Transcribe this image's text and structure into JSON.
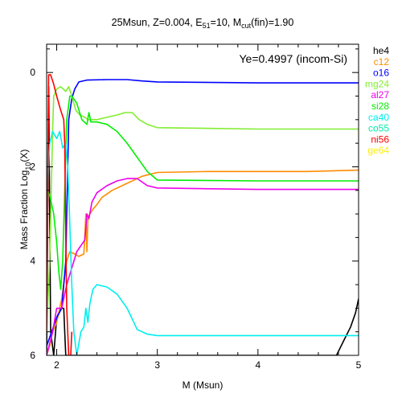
{
  "chart_data": {
    "type": "line",
    "title": {
      "model": "25Msun, Z=0.004, E",
      "e_sub": "51",
      "e_val": "=10, M",
      "m_sub": "cut",
      "m_val": "(fin)=1.90"
    },
    "xlabel": "M (Msun)",
    "ylabel": {
      "main": "Mass Fraction Log",
      "sub": "10",
      "tail": "(X)"
    },
    "annotation": "Ye=0.4997 (incom-Si)",
    "xlim": [
      1.9,
      5
    ],
    "ylim": [
      -6,
      0.6
    ],
    "grid": false,
    "legend_position": "right-outside",
    "x_ticks": [
      2,
      3,
      4,
      5
    ],
    "x_tick_labels": [
      "2",
      "3",
      "4",
      "5"
    ],
    "y_ticks": [
      0,
      -2,
      -4,
      -6
    ],
    "y_tick_labels": [
      "0",
      "2",
      "4",
      "6"
    ],
    "series": [
      {
        "name": "he4",
        "color": "#000000",
        "points": [
          [
            1.9,
            -6
          ],
          [
            1.92,
            -0.3
          ],
          [
            1.94,
            -5.5
          ],
          [
            1.97,
            -6
          ],
          [
            2.0,
            -5.2
          ],
          [
            2.04,
            -5.0
          ],
          [
            2.07,
            -5.0
          ],
          [
            2.08,
            -5.5
          ],
          [
            2.09,
            -6
          ],
          [
            4.78,
            -6
          ],
          [
            4.85,
            -5.7
          ],
          [
            4.92,
            -5.4
          ],
          [
            4.97,
            -5.1
          ],
          [
            5.0,
            -4.8
          ]
        ]
      },
      {
        "name": "c12",
        "color": "#ff8c00",
        "points": [
          [
            1.9,
            -6
          ],
          [
            1.93,
            -5.8
          ],
          [
            1.96,
            -5.5
          ],
          [
            2.0,
            -5.3
          ],
          [
            2.05,
            -4.8
          ],
          [
            2.1,
            -4.0
          ],
          [
            2.13,
            -3.8
          ],
          [
            2.18,
            -3.85
          ],
          [
            2.22,
            -3.9
          ],
          [
            2.27,
            -3.85
          ],
          [
            2.29,
            -3.0
          ],
          [
            2.3,
            -3.8
          ],
          [
            2.31,
            -3.1
          ],
          [
            2.33,
            -3.0
          ],
          [
            2.36,
            -2.9
          ],
          [
            2.4,
            -2.8
          ],
          [
            2.45,
            -2.65
          ],
          [
            2.55,
            -2.5
          ],
          [
            2.7,
            -2.35
          ],
          [
            2.85,
            -2.2
          ],
          [
            3.0,
            -2.12
          ],
          [
            3.5,
            -2.1
          ],
          [
            4.0,
            -2.1
          ],
          [
            4.5,
            -2.1
          ],
          [
            5.0,
            -2.07
          ]
        ]
      },
      {
        "name": "o16",
        "color": "#0000ff",
        "points": [
          [
            1.9,
            -5.8
          ],
          [
            1.95,
            -5.5
          ],
          [
            2.0,
            -5.2
          ],
          [
            2.05,
            -5.0
          ],
          [
            2.09,
            -4.0
          ],
          [
            2.12,
            -1.0
          ],
          [
            2.15,
            -0.55
          ],
          [
            2.18,
            -0.35
          ],
          [
            2.22,
            -0.2
          ],
          [
            2.3,
            -0.16
          ],
          [
            2.5,
            -0.15
          ],
          [
            2.7,
            -0.15
          ],
          [
            2.85,
            -0.18
          ],
          [
            3.0,
            -0.2
          ],
          [
            4.0,
            -0.22
          ],
          [
            5.0,
            -0.22
          ]
        ]
      },
      {
        "name": "mg24",
        "color": "#80ee30",
        "points": [
          [
            1.9,
            -5.5
          ],
          [
            1.93,
            -4.0
          ],
          [
            1.96,
            -1.2
          ],
          [
            1.97,
            -0.5
          ],
          [
            2.0,
            -0.35
          ],
          [
            2.04,
            -0.3
          ],
          [
            2.09,
            -0.4
          ],
          [
            2.12,
            -0.3
          ],
          [
            2.15,
            -0.5
          ],
          [
            2.19,
            -0.8
          ],
          [
            2.23,
            -0.9
          ],
          [
            2.28,
            -0.95
          ],
          [
            2.31,
            -1.0
          ],
          [
            2.4,
            -1.0
          ],
          [
            2.5,
            -0.95
          ],
          [
            2.6,
            -0.9
          ],
          [
            2.68,
            -0.85
          ],
          [
            2.75,
            -0.85
          ],
          [
            2.82,
            -1.0
          ],
          [
            2.9,
            -1.1
          ],
          [
            3.0,
            -1.17
          ],
          [
            4.0,
            -1.2
          ],
          [
            5.0,
            -1.2
          ]
        ]
      },
      {
        "name": "al27",
        "color": "#ee00ee",
        "points": [
          [
            1.9,
            -6
          ],
          [
            1.96,
            -5.5
          ],
          [
            2.0,
            -5.0
          ],
          [
            2.05,
            -5.0
          ],
          [
            2.1,
            -4.5
          ],
          [
            2.2,
            -3.8
          ],
          [
            2.28,
            -3.55
          ],
          [
            2.3,
            -3.0
          ],
          [
            2.32,
            -3.1
          ],
          [
            2.35,
            -2.75
          ],
          [
            2.4,
            -2.55
          ],
          [
            2.5,
            -2.4
          ],
          [
            2.6,
            -2.3
          ],
          [
            2.7,
            -2.25
          ],
          [
            2.8,
            -2.25
          ],
          [
            2.9,
            -2.4
          ],
          [
            3.0,
            -2.45
          ],
          [
            4.0,
            -2.48
          ],
          [
            5.0,
            -2.48
          ]
        ]
      },
      {
        "name": "si28",
        "color": "#00ee00",
        "points": [
          [
            1.9,
            -2.5
          ],
          [
            1.93,
            -2.6
          ],
          [
            1.97,
            -3.0
          ],
          [
            2.0,
            -3.6
          ],
          [
            2.02,
            -4.2
          ],
          [
            2.04,
            -4.6
          ],
          [
            2.06,
            -4.0
          ],
          [
            2.08,
            -2.5
          ],
          [
            2.1,
            -1.0
          ],
          [
            2.13,
            -0.5
          ],
          [
            2.15,
            -0.5
          ],
          [
            2.2,
            -0.65
          ],
          [
            2.25,
            -1.0
          ],
          [
            2.3,
            -1.1
          ],
          [
            2.32,
            -0.85
          ],
          [
            2.34,
            -1.05
          ],
          [
            2.4,
            -1.05
          ],
          [
            2.5,
            -1.1
          ],
          [
            2.6,
            -1.25
          ],
          [
            2.7,
            -1.5
          ],
          [
            2.8,
            -1.8
          ],
          [
            2.9,
            -2.1
          ],
          [
            3.0,
            -2.28
          ],
          [
            4.0,
            -2.3
          ],
          [
            5.0,
            -2.3
          ]
        ]
      },
      {
        "name": "ca40",
        "color": "#00eeee",
        "points": [
          [
            1.9,
            -3.0
          ],
          [
            1.93,
            -1.5
          ],
          [
            1.96,
            -1.25
          ],
          [
            2.0,
            -1.4
          ],
          [
            2.03,
            -1.25
          ],
          [
            2.06,
            -1.6
          ],
          [
            2.09,
            -1.5
          ],
          [
            2.11,
            -2.0
          ],
          [
            2.13,
            -3.2
          ],
          [
            2.15,
            -4.5
          ],
          [
            2.17,
            -5.5
          ],
          [
            2.2,
            -6
          ],
          [
            2.24,
            -5.5
          ],
          [
            2.27,
            -5.4
          ],
          [
            2.29,
            -5.0
          ],
          [
            2.31,
            -5.3
          ],
          [
            2.33,
            -4.9
          ],
          [
            2.36,
            -4.6
          ],
          [
            2.4,
            -4.5
          ],
          [
            2.5,
            -4.55
          ],
          [
            2.6,
            -4.7
          ],
          [
            2.7,
            -5.0
          ],
          [
            2.8,
            -5.45
          ],
          [
            2.9,
            -5.55
          ],
          [
            3.0,
            -5.58
          ],
          [
            4.0,
            -5.58
          ],
          [
            5.0,
            -5.58
          ]
        ]
      },
      {
        "name": "co55",
        "color": "#00eeaa",
        "points": []
      },
      {
        "name": "ni56",
        "color": "#ff0000",
        "points": [
          [
            1.9,
            -5.5
          ],
          [
            1.92,
            -0.05
          ],
          [
            1.94,
            -0.05
          ],
          [
            1.97,
            -0.25
          ],
          [
            2.0,
            -0.5
          ],
          [
            2.04,
            -0.8
          ],
          [
            2.07,
            -1.0
          ],
          [
            2.08,
            -1.5
          ],
          [
            2.09,
            -3.5
          ],
          [
            2.1,
            -5.0
          ],
          [
            2.12,
            -6
          ],
          [
            2.14,
            -6
          ],
          [
            2.15,
            -5.5
          ]
        ]
      },
      {
        "name": "ge64",
        "color": "#ffee00",
        "points": []
      }
    ]
  }
}
